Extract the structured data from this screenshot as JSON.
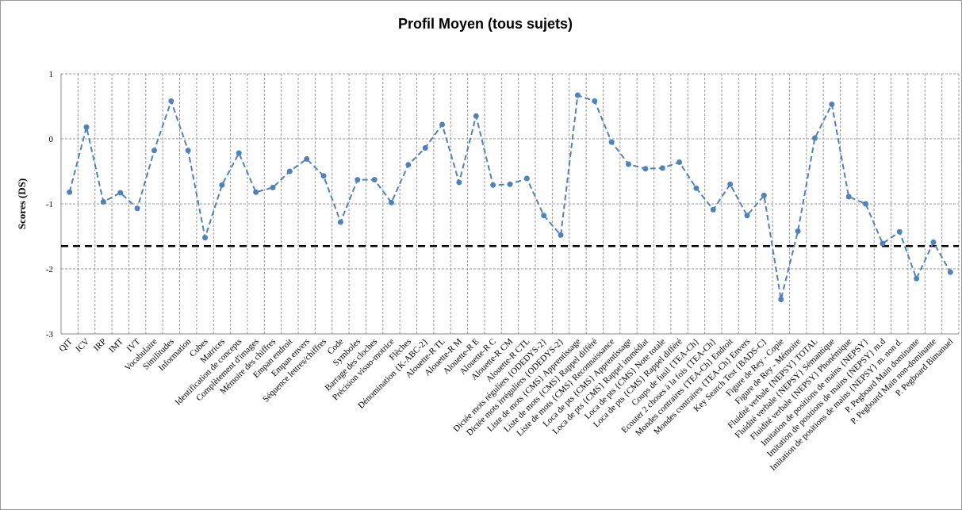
{
  "chart_data": {
    "type": "line",
    "title": "Profil Moyen (tous sujets)",
    "y_label": "Scores (DS)",
    "categories": [
      "QIT",
      "ICV",
      "IRP",
      "IMT",
      "IVT",
      "Vocabulaire",
      "Similitudes",
      "Information",
      "Cubes",
      "Matrices",
      "Identification de concepts",
      "Complètement d'images",
      "Mémoire des chiffres",
      "Empan endroit",
      "Empan envers",
      "Séquence lettres/chiffres",
      "Code",
      "Symboles",
      "Barrage des cloches",
      "Précision visuo-motrice",
      "Flèches",
      "Dénomination {K-ABC-2}",
      "Alouette-R TL",
      "Alouette-R M",
      "Alouette-R E",
      "Alouette-R C",
      "Alouette-R CM",
      "Alouette-R CTL",
      "Dictée mots réguliers {ODEDYS-2}",
      "Dictée mots irréguliers {ODEDYS-2}",
      "Liste de mots {CMS} Apprentissage",
      "Liste de mots {CMS} Rappel différé",
      "Liste de mots {CMS} Reconnaissance",
      "Loca de pts {CMS} Apprentissage",
      "Loca de pts {CMS} Rappel immédiat",
      "Loca de pts {CMS} Note totale",
      "Loca de pts {CMS} Rappel différé",
      "Coups de fusil {TEA-Ch}",
      "Ecouter 2 choses à la fois {TEA-Ch}",
      "Mondes contraires {TEA-Ch} Endroit",
      "Mondes contraires {TEA-Ch} Envers",
      "Key Search Test {BADS-C}",
      "Figure de Rey - Copie",
      "Figure de Rey - Mémoire",
      "Fluidité verbale {NEPSY} TOTAL",
      "Fluidité verbale {NEPSY} Sémantique",
      "Fluidité verbale {NEPSY} Phonémique",
      "Imitation de positions de mains {NEPSY}",
      "Imitation de positions de mains {NEPSY} m.d",
      "Imitation de positions de mains {NEPSY} m. non d.",
      "P. Pegboard Main dominante",
      "P. Pegboard Main non-dominante",
      "P. Pegboard Bimanuel"
    ],
    "series": [
      {
        "color": "#4f81bd",
        "values": [
          -0.82,
          0.18,
          -0.97,
          -0.83,
          -1.07,
          -0.18,
          0.58,
          -0.18,
          -1.52,
          -0.71,
          -0.22,
          -0.82,
          -0.75,
          -0.5,
          -0.31,
          -0.57,
          -1.28,
          -0.63,
          -0.63,
          -0.98,
          -0.4,
          -0.14,
          0.22,
          -0.67,
          0.35,
          -0.71,
          -0.7,
          -0.61,
          -1.18,
          -1.48,
          0.67,
          0.58,
          -0.05,
          -0.39,
          -0.46,
          -0.45,
          -0.36,
          -0.76,
          -1.09,
          -0.7,
          -1.18,
          -0.87,
          -2.47,
          -1.42,
          0.01,
          0.53,
          -0.89,
          -1.0,
          -1.61,
          -1.43,
          -2.15,
          -1.59,
          -2.05
        ]
      }
    ],
    "threshold": -1.65,
    "ylim": [
      -3,
      1
    ],
    "yticks": [
      -3,
      -2,
      -1,
      0,
      1
    ],
    "grid": true
  }
}
